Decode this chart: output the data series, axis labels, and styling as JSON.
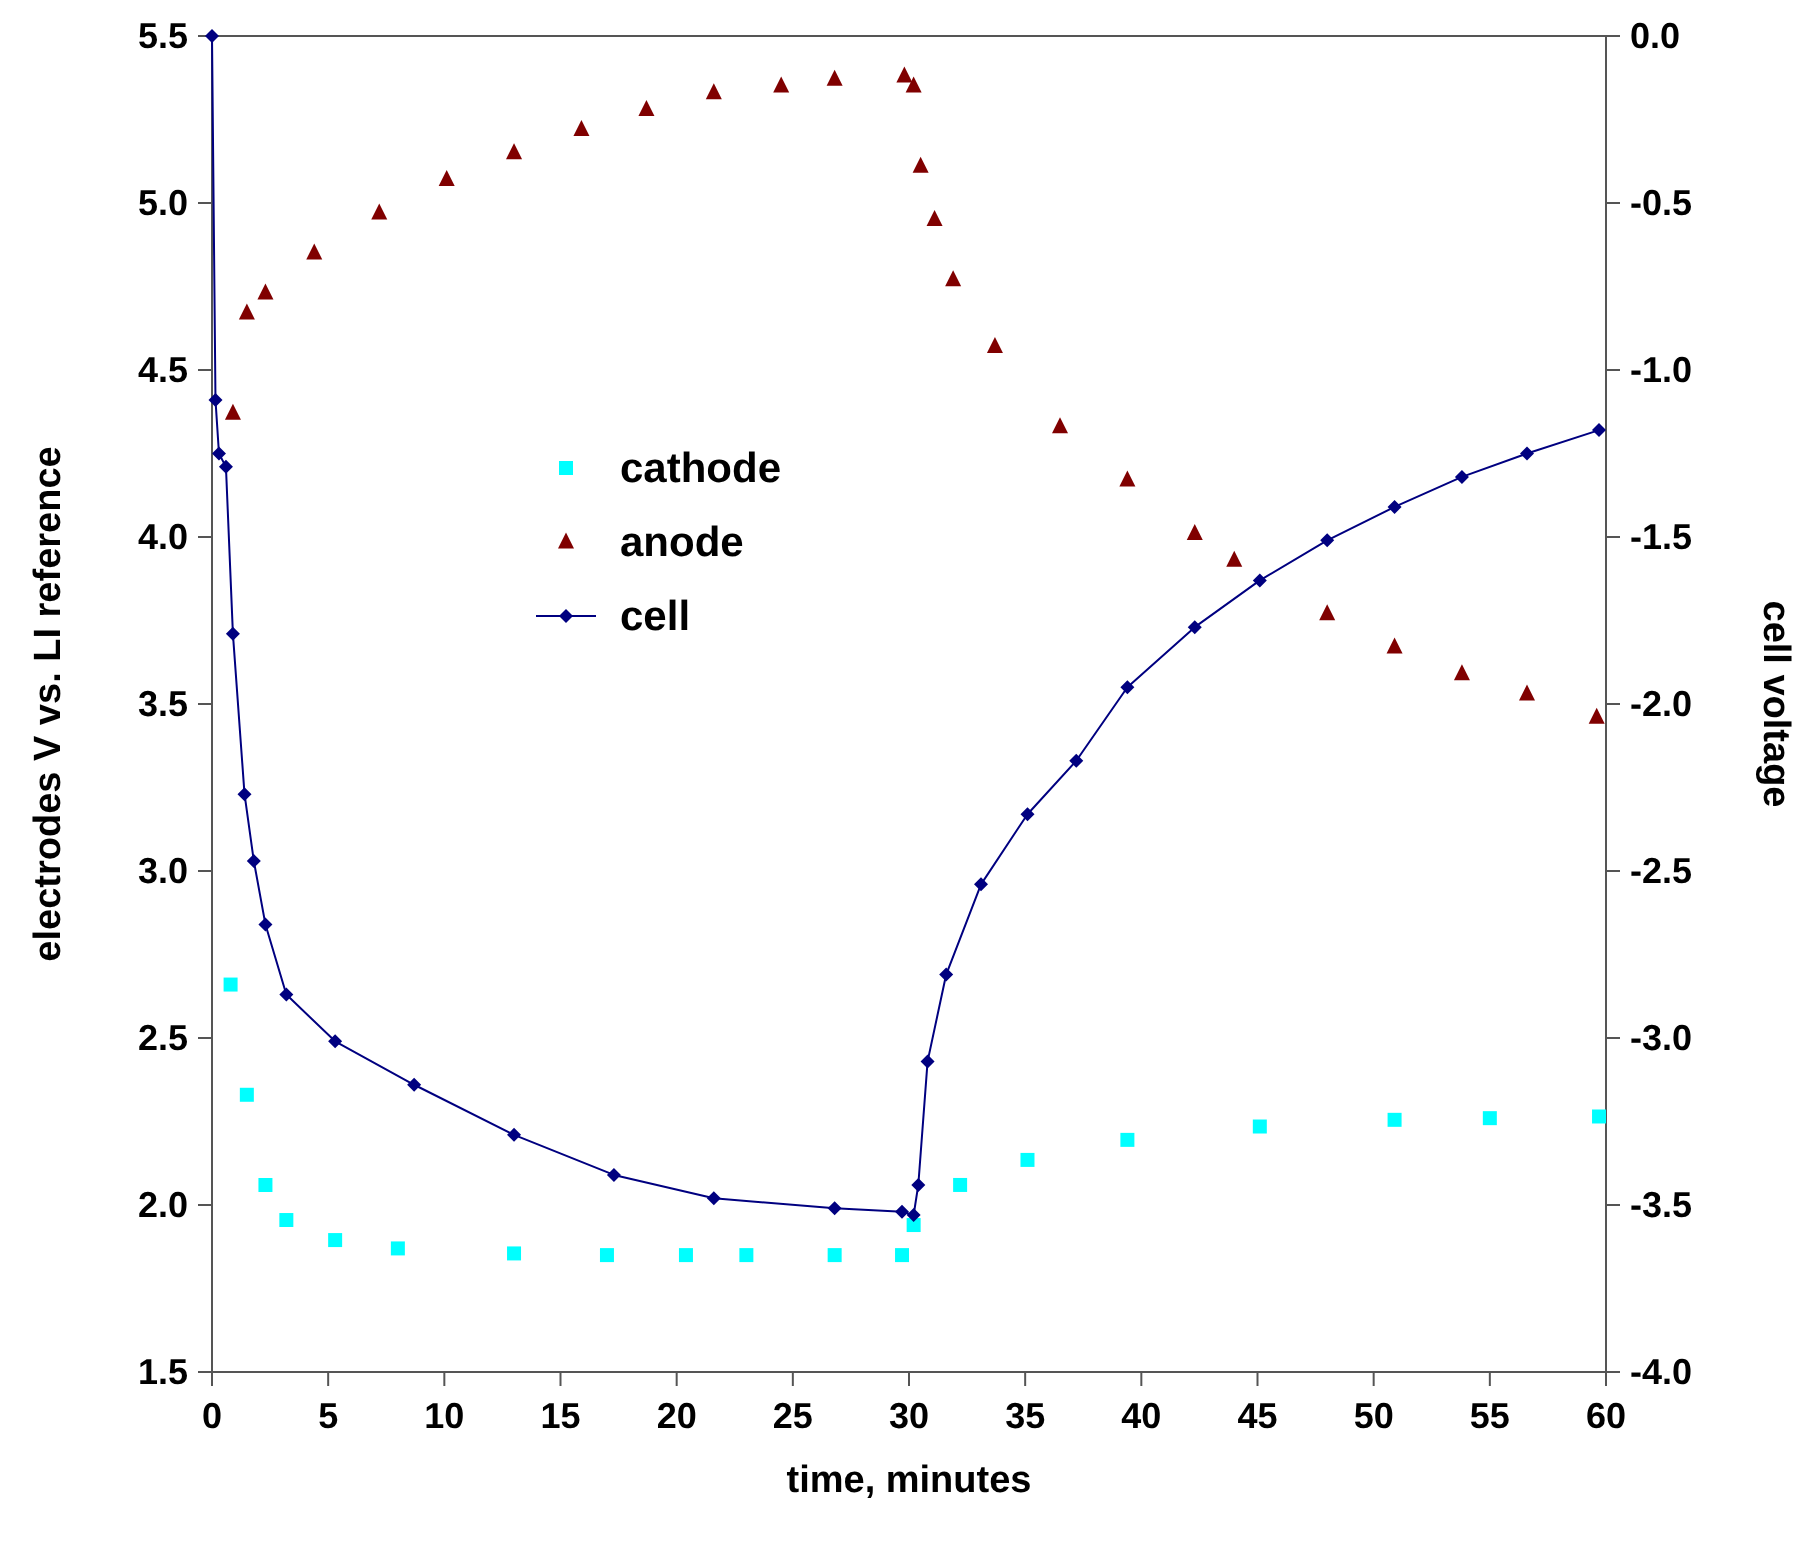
{
  "chart_data": {
    "type": "scatter",
    "xlabel": "time, minutes",
    "ylabel": "electrodes V vs. LI reference",
    "y2label": "cell voltage",
    "xlim": [
      0,
      60
    ],
    "xticks": [
      0,
      5,
      10,
      15,
      20,
      25,
      30,
      35,
      40,
      45,
      50,
      55,
      60
    ],
    "ylim": [
      1.5,
      5.5
    ],
    "yticks": [
      1.5,
      {
        "value": 2,
        "label": "2.0"
      },
      2.5,
      {
        "value": 3,
        "label": "3.0"
      },
      3.5,
      {
        "value": 4,
        "label": "4.0"
      },
      4.5,
      {
        "value": 5,
        "label": "5.0"
      },
      5.5
    ],
    "y2lim": [
      -4,
      0
    ],
    "y2ticks": [
      {
        "value": -4,
        "label": "-4.0"
      },
      -3.5,
      {
        "value": -3,
        "label": "-3.0"
      },
      -2.5,
      {
        "value": -2,
        "label": "-2.0"
      },
      -1.5,
      {
        "value": -1,
        "label": "-1.0"
      },
      -0.5,
      {
        "value": 0,
        "label": "0.0"
      }
    ],
    "grid": false,
    "legend": "left",
    "series": [
      {
        "name": "cathode",
        "marker": "square",
        "color": "#00ffff",
        "x": [
          0.8,
          1.5,
          2.3,
          3.2,
          5.3,
          8,
          13,
          17,
          20.4,
          23,
          26.8,
          29.7,
          30.2,
          32.2,
          35.1,
          39.4,
          45.1,
          50.9,
          55,
          59.7
        ],
        "values": [
          2.66,
          2.33,
          2.06,
          1.955,
          1.895,
          1.87,
          1.855,
          1.85,
          1.85,
          1.85,
          1.85,
          1.85,
          1.94,
          2.06,
          2.135,
          2.195,
          2.235,
          2.255,
          2.26,
          2.265
        ]
      },
      {
        "name": "anode",
        "marker": "triangle",
        "color": "#800000",
        "x": [
          0.9,
          1.5,
          2.3,
          4.4,
          7.2,
          10.1,
          13,
          15.9,
          18.7,
          21.6,
          24.5,
          26.8,
          29.8,
          30.2,
          30.5,
          31.1,
          31.9,
          33.7,
          36.5,
          39.4,
          42.3,
          44,
          48,
          50.9,
          53.8,
          56.6,
          59.6
        ],
        "values": [
          4.37,
          4.67,
          4.73,
          4.85,
          4.97,
          5.07,
          5.15,
          5.22,
          5.28,
          5.33,
          5.35,
          5.37,
          5.38,
          5.35,
          5.11,
          4.95,
          4.77,
          4.57,
          4.33,
          4.17,
          4.01,
          3.93,
          3.77,
          3.67,
          3.59,
          3.53,
          3.46
        ]
      },
      {
        "name": "cell",
        "type": "line",
        "axis": "y2",
        "marker": "diamond",
        "line_style": "solid",
        "color": "#000080",
        "x": [
          0,
          0.15,
          0.3,
          0.6,
          0.9,
          1.4,
          1.8,
          2.3,
          3.2,
          5.3,
          8.7,
          13,
          17.3,
          21.6,
          26.8,
          29.7,
          30.2,
          30.4,
          30.8,
          31.6,
          33.1,
          35.1,
          37.2,
          39.4,
          42.3,
          45.1,
          48,
          50.9,
          53.8,
          56.6,
          59.7
        ],
        "values": [
          0,
          -1.09,
          -1.25,
          -1.29,
          -1.79,
          -2.27,
          -2.47,
          -2.66,
          -2.87,
          -3.01,
          -3.14,
          -3.29,
          -3.41,
          -3.48,
          -3.51,
          -3.52,
          -3.53,
          -3.44,
          -3.07,
          -2.81,
          -2.54,
          -2.33,
          -2.17,
          -1.95,
          -1.77,
          -1.63,
          -1.51,
          -1.41,
          -1.32,
          -1.25,
          -1.18
        ]
      }
    ]
  }
}
